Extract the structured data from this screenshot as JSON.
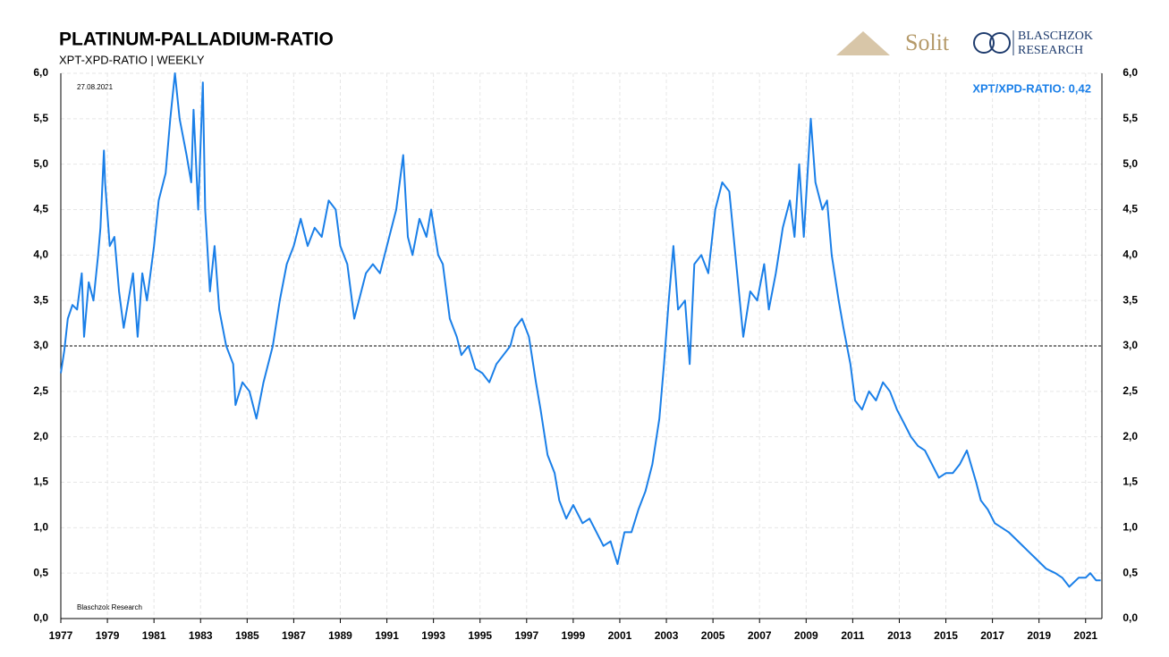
{
  "chart_data": {
    "type": "line",
    "title": "PLATINUM-PALLADIUM-RATIO",
    "subtitle": "XPT-XPD-RATIO | WEEKLY",
    "date_note": "27.08.2021",
    "source": "Blaschzok  Research",
    "annotation": "XPT/XPD-RATIO: 0,42",
    "logos": [
      "Solit",
      "BLASCHZOK",
      "RESEARCH"
    ],
    "reference_line": 3.0,
    "xlim": [
      1977,
      2021.7
    ],
    "ylim": [
      0,
      6
    ],
    "xticks": [
      1977,
      1979,
      1981,
      1983,
      1985,
      1987,
      1989,
      1991,
      1993,
      1995,
      1997,
      1999,
      2001,
      2003,
      2005,
      2007,
      2009,
      2011,
      2013,
      2015,
      2017,
      2019,
      2021
    ],
    "yticks": [
      {
        "value": 0,
        "label": "0,0"
      },
      {
        "value": 0.5,
        "label": "0,5"
      },
      {
        "value": 1,
        "label": "1,0"
      },
      {
        "value": 1.5,
        "label": "1,5"
      },
      {
        "value": 2,
        "label": "2,0"
      },
      {
        "value": 2.5,
        "label": "2,5"
      },
      {
        "value": 3,
        "label": "3,0"
      },
      {
        "value": 3.5,
        "label": "3,5"
      },
      {
        "value": 4,
        "label": "4,0"
      },
      {
        "value": 4.5,
        "label": "4,5"
      },
      {
        "value": 5,
        "label": "5,0"
      },
      {
        "value": 5.5,
        "label": "5,5"
      },
      {
        "value": 6,
        "label": "6,0"
      }
    ],
    "grid": true,
    "series": [
      {
        "name": "XPT/XPD-RATIO",
        "color": "#1a7fe8",
        "x": [
          1977.0,
          1977.15,
          1977.3,
          1977.5,
          1977.7,
          1977.9,
          1978.0,
          1978.2,
          1978.4,
          1978.6,
          1978.7,
          1978.85,
          1978.9,
          1979.1,
          1979.3,
          1979.5,
          1979.7,
          1979.9,
          1980.1,
          1980.3,
          1980.5,
          1980.7,
          1981.0,
          1981.2,
          1981.5,
          1981.7,
          1981.9,
          1982.1,
          1982.4,
          1982.6,
          1982.7,
          1982.9,
          1983.1,
          1983.2,
          1983.4,
          1983.6,
          1983.8,
          1984.1,
          1984.4,
          1984.5,
          1984.8,
          1985.1,
          1985.4,
          1985.7,
          1986.1,
          1986.4,
          1986.7,
          1987.0,
          1987.3,
          1987.6,
          1987.9,
          1988.2,
          1988.5,
          1988.8,
          1989.0,
          1989.3,
          1989.6,
          1989.9,
          1990.1,
          1990.4,
          1990.7,
          1991.1,
          1991.4,
          1991.7,
          1991.9,
          1992.1,
          1992.4,
          1992.7,
          1992.9,
          1993.2,
          1993.4,
          1993.7,
          1994.0,
          1994.2,
          1994.5,
          1994.8,
          1995.1,
          1995.4,
          1995.7,
          1996.0,
          1996.3,
          1996.5,
          1996.8,
          1997.1,
          1997.4,
          1997.6,
          1997.9,
          1998.2,
          1998.4,
          1998.7,
          1999.0,
          1999.4,
          1999.7,
          2000.0,
          2000.3,
          2000.6,
          2000.9,
          2001.2,
          2001.5,
          2001.8,
          2002.1,
          2002.4,
          2002.7,
          2002.9,
          2003.1,
          2003.3,
          2003.5,
          2003.8,
          2004.0,
          2004.2,
          2004.5,
          2004.8,
          2005.1,
          2005.4,
          2005.7,
          2006.0,
          2006.3,
          2006.6,
          2006.9,
          2007.2,
          2007.4,
          2007.7,
          2008.0,
          2008.3,
          2008.5,
          2008.7,
          2008.9,
          2009.2,
          2009.4,
          2009.7,
          2009.9,
          2010.1,
          2010.4,
          2010.6,
          2010.9,
          2011.1,
          2011.4,
          2011.7,
          2012.0,
          2012.3,
          2012.6,
          2012.9,
          2013.2,
          2013.5,
          2013.8,
          2014.1,
          2014.4,
          2014.7,
          2015.0,
          2015.3,
          2015.6,
          2015.9,
          2016.3,
          2016.5,
          2016.8,
          2017.1,
          2017.4,
          2017.7,
          2018.1,
          2018.5,
          2018.9,
          2019.3,
          2019.7,
          2020.0,
          2020.3,
          2020.7,
          2021.0,
          2021.2,
          2021.45,
          2021.65
        ],
        "values": [
          2.7,
          2.95,
          3.3,
          3.45,
          3.4,
          3.8,
          3.1,
          3.7,
          3.5,
          4.0,
          4.3,
          5.15,
          4.8,
          4.1,
          4.2,
          3.6,
          3.2,
          3.5,
          3.8,
          3.1,
          3.8,
          3.5,
          4.1,
          4.6,
          4.9,
          5.5,
          6.0,
          5.5,
          5.1,
          4.8,
          5.6,
          4.5,
          5.9,
          4.5,
          3.6,
          4.1,
          3.4,
          3.0,
          2.8,
          2.35,
          2.6,
          2.5,
          2.2,
          2.6,
          3.0,
          3.5,
          3.9,
          4.1,
          4.4,
          4.1,
          4.3,
          4.2,
          4.6,
          4.5,
          4.1,
          3.9,
          3.3,
          3.6,
          3.8,
          3.9,
          3.8,
          4.2,
          4.5,
          5.1,
          4.2,
          4.0,
          4.4,
          4.2,
          4.5,
          4.0,
          3.9,
          3.3,
          3.1,
          2.9,
          3.0,
          2.75,
          2.7,
          2.6,
          2.8,
          2.9,
          3.0,
          3.2,
          3.3,
          3.1,
          2.6,
          2.3,
          1.8,
          1.6,
          1.3,
          1.1,
          1.25,
          1.05,
          1.1,
          0.95,
          0.8,
          0.85,
          0.6,
          0.95,
          0.95,
          1.2,
          1.4,
          1.7,
          2.2,
          2.8,
          3.5,
          4.1,
          3.4,
          3.5,
          2.8,
          3.9,
          4.0,
          3.8,
          4.5,
          4.8,
          4.7,
          3.9,
          3.1,
          3.6,
          3.5,
          3.9,
          3.4,
          3.8,
          4.3,
          4.6,
          4.2,
          5.0,
          4.2,
          5.5,
          4.8,
          4.5,
          4.6,
          4.0,
          3.5,
          3.2,
          2.8,
          2.4,
          2.3,
          2.5,
          2.4,
          2.6,
          2.5,
          2.3,
          2.15,
          2.0,
          1.9,
          1.85,
          1.7,
          1.55,
          1.6,
          1.6,
          1.7,
          1.85,
          1.5,
          1.3,
          1.2,
          1.05,
          1.0,
          0.95,
          0.85,
          0.75,
          0.65,
          0.55,
          0.5,
          0.45,
          0.35,
          0.45,
          0.45,
          0.5,
          0.42,
          0.42
        ]
      }
    ]
  }
}
